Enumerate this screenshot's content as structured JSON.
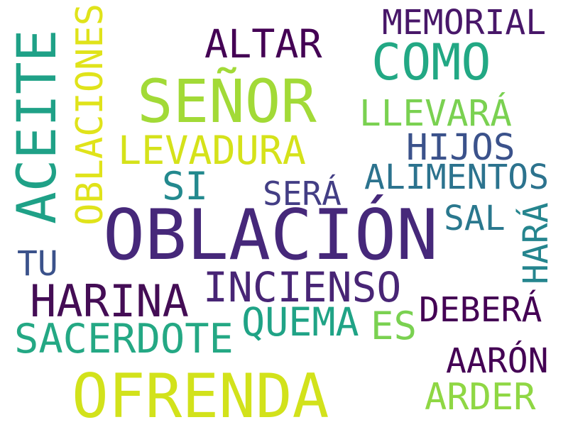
{
  "words": {
    "oblacion": {
      "text": "OBLACIÓN",
      "color": "#46287a"
    },
    "ofrenda": {
      "text": "OFRENDA",
      "color": "#d2e21b"
    },
    "senor": {
      "text": "SEÑOR",
      "color": "#a2da37"
    },
    "aceite": {
      "text": "ACEITE",
      "color": "#1fa187"
    },
    "como": {
      "text": "COMO",
      "color": "#22a884"
    },
    "harina": {
      "text": "HARINA",
      "color": "#440d55"
    },
    "incienso": {
      "text": "INCIENSO",
      "color": "#482575"
    },
    "sacerdote": {
      "text": "SACERDOTE",
      "color": "#24a884"
    },
    "altar": {
      "text": "ALTAR",
      "color": "#440154"
    },
    "levadura": {
      "text": "LEVADURA",
      "color": "#d5e21a"
    },
    "quema": {
      "text": "QUEMA",
      "color": "#20a386"
    },
    "memorial": {
      "text": "MEMORIAL",
      "color": "#481769"
    },
    "alimentos": {
      "text": "ALIMENTOS",
      "color": "#2c738e"
    },
    "oblaciones": {
      "text": "OBLACIONES",
      "color": "#e0e31a"
    },
    "llevara": {
      "text": "LLEVARÁ",
      "color": "#7ad151"
    },
    "hijos": {
      "text": "HIJOS",
      "color": "#3b528b"
    },
    "debera": {
      "text": "DEBERÁ",
      "color": "#440154"
    },
    "arder": {
      "text": "ARDER",
      "color": "#8fd744"
    },
    "si": {
      "text": "SI",
      "color": "#23898e"
    },
    "sera": {
      "text": "SERÁ",
      "color": "#433e85"
    },
    "es": {
      "text": "ES",
      "color": "#7ad151"
    },
    "aaron": {
      "text": "AARÓN",
      "color": "#440154"
    },
    "sal": {
      "text": "SAL",
      "color": "#2a788e"
    },
    "hara": {
      "text": "HARÁ",
      "color": "#25858e"
    },
    "tu": {
      "text": "TU",
      "color": "#3b528b"
    }
  }
}
